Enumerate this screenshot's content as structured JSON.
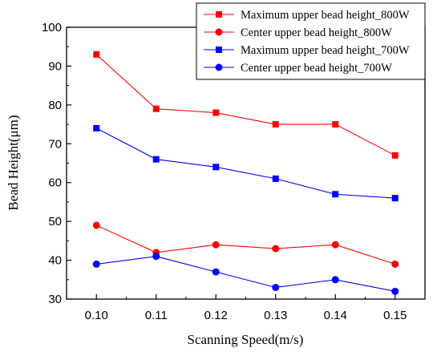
{
  "chart_data": {
    "type": "line",
    "title": "",
    "xlabel": "Scanning Speed(m/s)",
    "ylabel": "Bead Height(μm)",
    "x": [
      0.1,
      0.11,
      0.12,
      0.13,
      0.14,
      0.15
    ],
    "x_tick_labels": [
      "0.10",
      "0.11",
      "0.12",
      "0.13",
      "0.14",
      "0.15"
    ],
    "xlim": [
      0.095,
      0.155
    ],
    "ylim": [
      30,
      100
    ],
    "y_ticks": [
      30,
      40,
      50,
      60,
      70,
      80,
      90,
      100
    ],
    "grid": false,
    "legend_position": "top-right",
    "series": [
      {
        "name": "Maximum upper bead height_800W",
        "color": "#ff0000",
        "marker": "square",
        "values": [
          93,
          79,
          78,
          75,
          75,
          67
        ]
      },
      {
        "name": "Center upper bead height_800W",
        "color": "#ff0000",
        "marker": "circle",
        "values": [
          49,
          42,
          44,
          43,
          44,
          39
        ]
      },
      {
        "name": "Maximum upper bead height_700W",
        "color": "#0000ff",
        "marker": "square",
        "values": [
          74,
          66,
          64,
          61,
          57,
          56
        ]
      },
      {
        "name": "Center upper bead height_700W",
        "color": "#0000ff",
        "marker": "circle",
        "values": [
          39,
          41,
          37,
          33,
          35,
          32
        ]
      }
    ]
  }
}
